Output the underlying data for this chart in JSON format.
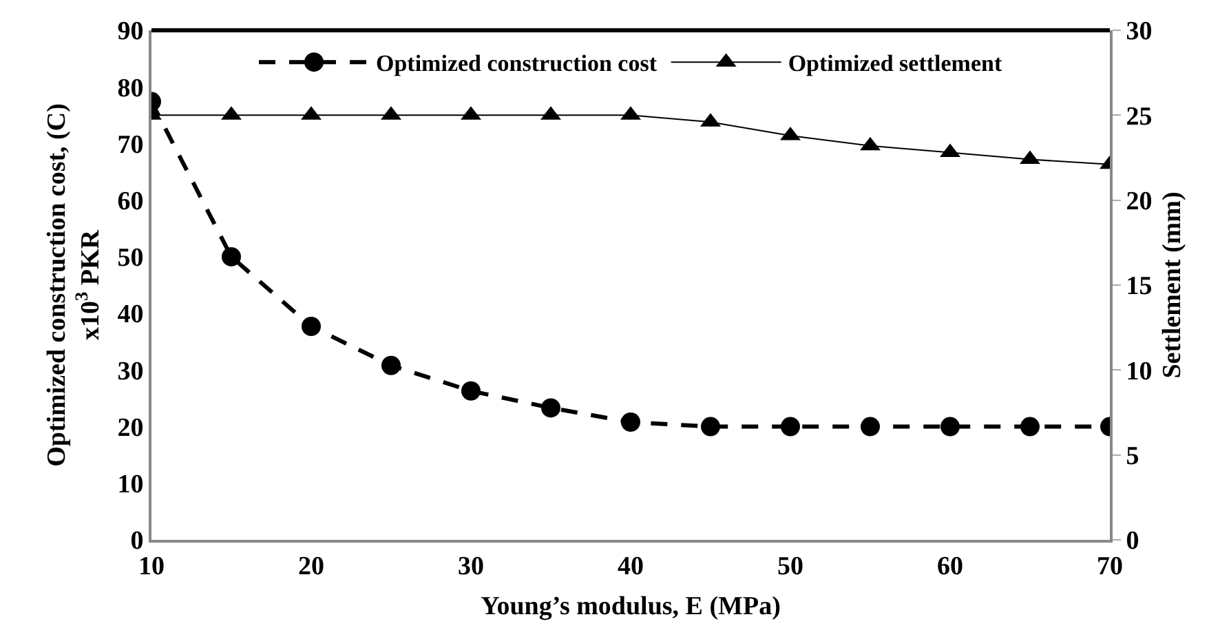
{
  "chart_data": {
    "type": "line",
    "xlabel": "Young’s modulus, E (MPa)",
    "ylabel": "Optimized construction cost, (C)\nx10$^{3}$ PKR",
    "y2label": "Settlement (mm)",
    "x": [
      10,
      15,
      20,
      25,
      30,
      35,
      40,
      45,
      50,
      55,
      60,
      65,
      70
    ],
    "series": [
      {
        "name": "Optimized construction cost",
        "color": "#000000",
        "marker": "circle",
        "line_style": "dashed",
        "values": [
          77.4,
          50,
          37.7,
          30.8,
          26.3,
          23.3,
          20.8,
          20,
          20,
          20,
          20,
          20,
          20
        ]
      },
      {
        "name": "Optimized settlement",
        "color": "#000000",
        "marker": "triangle",
        "line_style": "solid",
        "axis": "y2",
        "values": [
          25,
          25,
          25,
          25,
          25,
          25,
          25,
          24.6,
          23.8,
          23.2,
          22.8,
          22.4,
          22.1
        ]
      }
    ],
    "xlim": [
      10,
      70
    ],
    "xticks": [
      10,
      20,
      30,
      40,
      50,
      60,
      70
    ],
    "ylim": [
      0,
      90
    ],
    "yticks": [
      0,
      10,
      20,
      30,
      40,
      50,
      60,
      70,
      80,
      90
    ],
    "y2lim": [
      0,
      30
    ],
    "y2ticks": [
      0,
      5,
      10,
      15,
      20,
      25,
      30
    ],
    "grid": false,
    "legend": "top"
  }
}
